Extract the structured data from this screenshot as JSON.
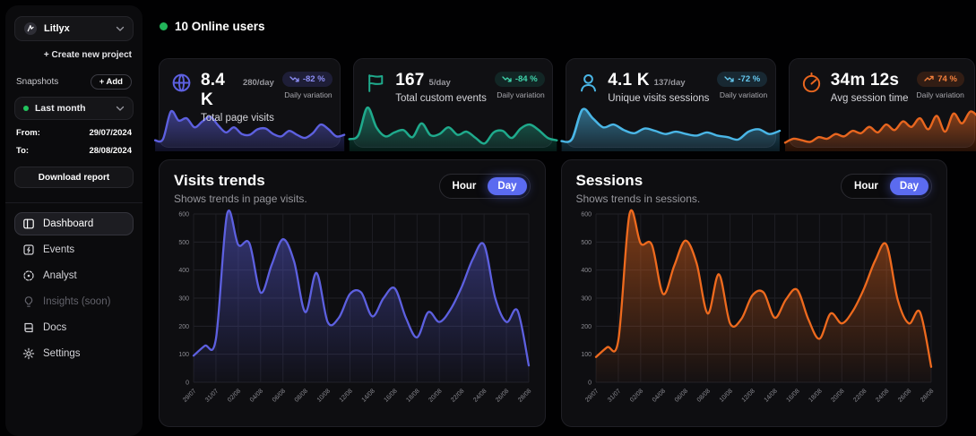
{
  "sidebar": {
    "project_name": "Litlyx",
    "create_new_project": "+ Create new project",
    "snapshots_label": "Snapshots",
    "add_button": "+ Add",
    "snapshot_selected": "Last month",
    "from_label": "From:",
    "from_value": "29/07/2024",
    "to_label": "To:",
    "to_value": "28/08/2024",
    "download_report": "Download report",
    "nav": [
      {
        "label": "Dashboard",
        "icon": "dashboard-icon",
        "active": true
      },
      {
        "label": "Events",
        "icon": "events-icon"
      },
      {
        "label": "Analyst",
        "icon": "analyst-icon"
      },
      {
        "label": "Insights (soon)",
        "icon": "insights-icon",
        "disabled": true
      },
      {
        "label": "Docs",
        "icon": "docs-icon"
      },
      {
        "label": "Settings",
        "icon": "settings-icon"
      }
    ]
  },
  "header": {
    "online_users": "10 Online users",
    "online_dot_color": "#22b55a"
  },
  "stat_cards": [
    {
      "icon": "globe-icon",
      "value": "8.4 K",
      "per_day": "280/day",
      "title": "Total page visits",
      "variation": "-82 %",
      "variation_label": "Daily variation",
      "trend": "down",
      "color": "#5d60e0",
      "badge_fg": "#8c8ef5",
      "badge_bg": "rgba(93,96,224,0.18)",
      "spark_ref": 2
    },
    {
      "icon": "flag-icon",
      "value": "167",
      "per_day": "5/day",
      "title": "Total custom events",
      "variation": "-84 %",
      "variation_label": "Daily variation",
      "trend": "down",
      "color": "#1faa8c",
      "badge_fg": "#3fd4ab",
      "badge_bg": "rgba(31,170,140,0.15)",
      "spark_ref": 3
    },
    {
      "icon": "user-icon",
      "value": "4.1 K",
      "per_day": "137/day",
      "title": "Unique visits sessions",
      "variation": "-72 %",
      "variation_label": "Daily variation",
      "trend": "down",
      "color": "#4ab6e6",
      "badge_fg": "#66c9f0",
      "badge_bg": "rgba(74,182,230,0.15)",
      "spark_ref": 4
    },
    {
      "icon": "timer-icon",
      "value": "34m 12s",
      "per_day": "",
      "title": "Avg session time",
      "variation": "74 %",
      "variation_label": "Daily variation",
      "trend": "up",
      "color": "#e8661f",
      "badge_fg": "#f5803c",
      "badge_bg": "rgba(232,102,31,0.16)",
      "spark_ref": 5
    }
  ],
  "main_charts": [
    {
      "title": "Visits trends",
      "subtitle": "Shows trends in page visits.",
      "toggle": {
        "hour": "Hour",
        "day": "Day"
      },
      "selected": "Day",
      "accent": "#5b6bf0"
    },
    {
      "title": "Sessions",
      "subtitle": "Shows trends in sessions.",
      "toggle": {
        "hour": "Hour",
        "day": "Day"
      },
      "selected": "Day",
      "accent": "#5b6bf0"
    }
  ],
  "chart_data": [
    {
      "type": "area",
      "title": "Visits trends",
      "xlabel": "",
      "ylabel": "",
      "x": [
        "29/07",
        "31/07",
        "02/08",
        "04/08",
        "06/08",
        "08/08",
        "10/08",
        "12/08",
        "14/08",
        "16/08",
        "18/08",
        "20/08",
        "22/08",
        "24/08",
        "26/08",
        "28/08"
      ],
      "values": [
        95,
        130,
        155,
        600,
        490,
        495,
        320,
        420,
        510,
        430,
        250,
        390,
        215,
        230,
        315,
        320,
        235,
        300,
        335,
        230,
        160,
        250,
        215,
        260,
        340,
        440,
        490,
        300,
        215,
        255,
        60
      ],
      "ylim": [
        0,
        600
      ],
      "yticks": [
        0,
        100,
        200,
        300,
        400,
        500,
        600
      ],
      "grid": true,
      "legend": "none",
      "color": "#5d60e0"
    },
    {
      "type": "area",
      "title": "Sessions",
      "xlabel": "",
      "ylabel": "",
      "x": [
        "29/07",
        "31/07",
        "02/08",
        "04/08",
        "06/08",
        "08/08",
        "10/08",
        "12/08",
        "14/08",
        "16/08",
        "18/08",
        "20/08",
        "22/08",
        "24/08",
        "26/08",
        "28/08"
      ],
      "values": [
        90,
        125,
        150,
        600,
        495,
        490,
        315,
        415,
        505,
        425,
        245,
        385,
        210,
        225,
        310,
        320,
        230,
        295,
        330,
        225,
        155,
        245,
        210,
        255,
        335,
        435,
        490,
        295,
        210,
        250,
        55
      ],
      "ylim": [
        0,
        600
      ],
      "yticks": [
        0,
        100,
        200,
        300,
        400,
        500,
        600
      ],
      "grid": true,
      "legend": "none",
      "color": "#ee6a1e"
    },
    {
      "type": "area",
      "title": "Total page visits sparkline",
      "color": "#5d60e0",
      "ylim": [
        0,
        100
      ],
      "values": [
        12,
        15,
        85,
        62,
        68,
        45,
        60,
        72,
        50,
        32,
        45,
        28,
        26,
        40,
        42,
        28,
        22,
        36,
        26,
        18,
        30,
        52,
        40,
        22,
        26
      ]
    },
    {
      "type": "area",
      "title": "Total custom events sparkline",
      "color": "#1faa8c",
      "ylim": [
        0,
        100
      ],
      "values": [
        15,
        25,
        95,
        45,
        22,
        32,
        38,
        20,
        55,
        25,
        28,
        45,
        26,
        34,
        18,
        4,
        32,
        36,
        18,
        42,
        52,
        38,
        18,
        12
      ]
    },
    {
      "type": "area",
      "title": "Unique visits sessions sparkline",
      "color": "#4ab6e6",
      "ylim": [
        0,
        100
      ],
      "values": [
        10,
        15,
        90,
        68,
        45,
        52,
        38,
        30,
        42,
        36,
        28,
        34,
        28,
        24,
        32,
        24,
        20,
        14,
        34,
        40,
        28,
        36
      ]
    },
    {
      "type": "area",
      "title": "Avg session time sparkline",
      "color": "#e8661f",
      "ylim": [
        0,
        100
      ],
      "values": [
        6,
        16,
        12,
        8,
        20,
        16,
        28,
        22,
        36,
        30,
        46,
        32,
        52,
        38,
        60,
        46,
        68,
        40,
        74,
        34,
        80,
        55,
        85,
        70
      ]
    }
  ]
}
